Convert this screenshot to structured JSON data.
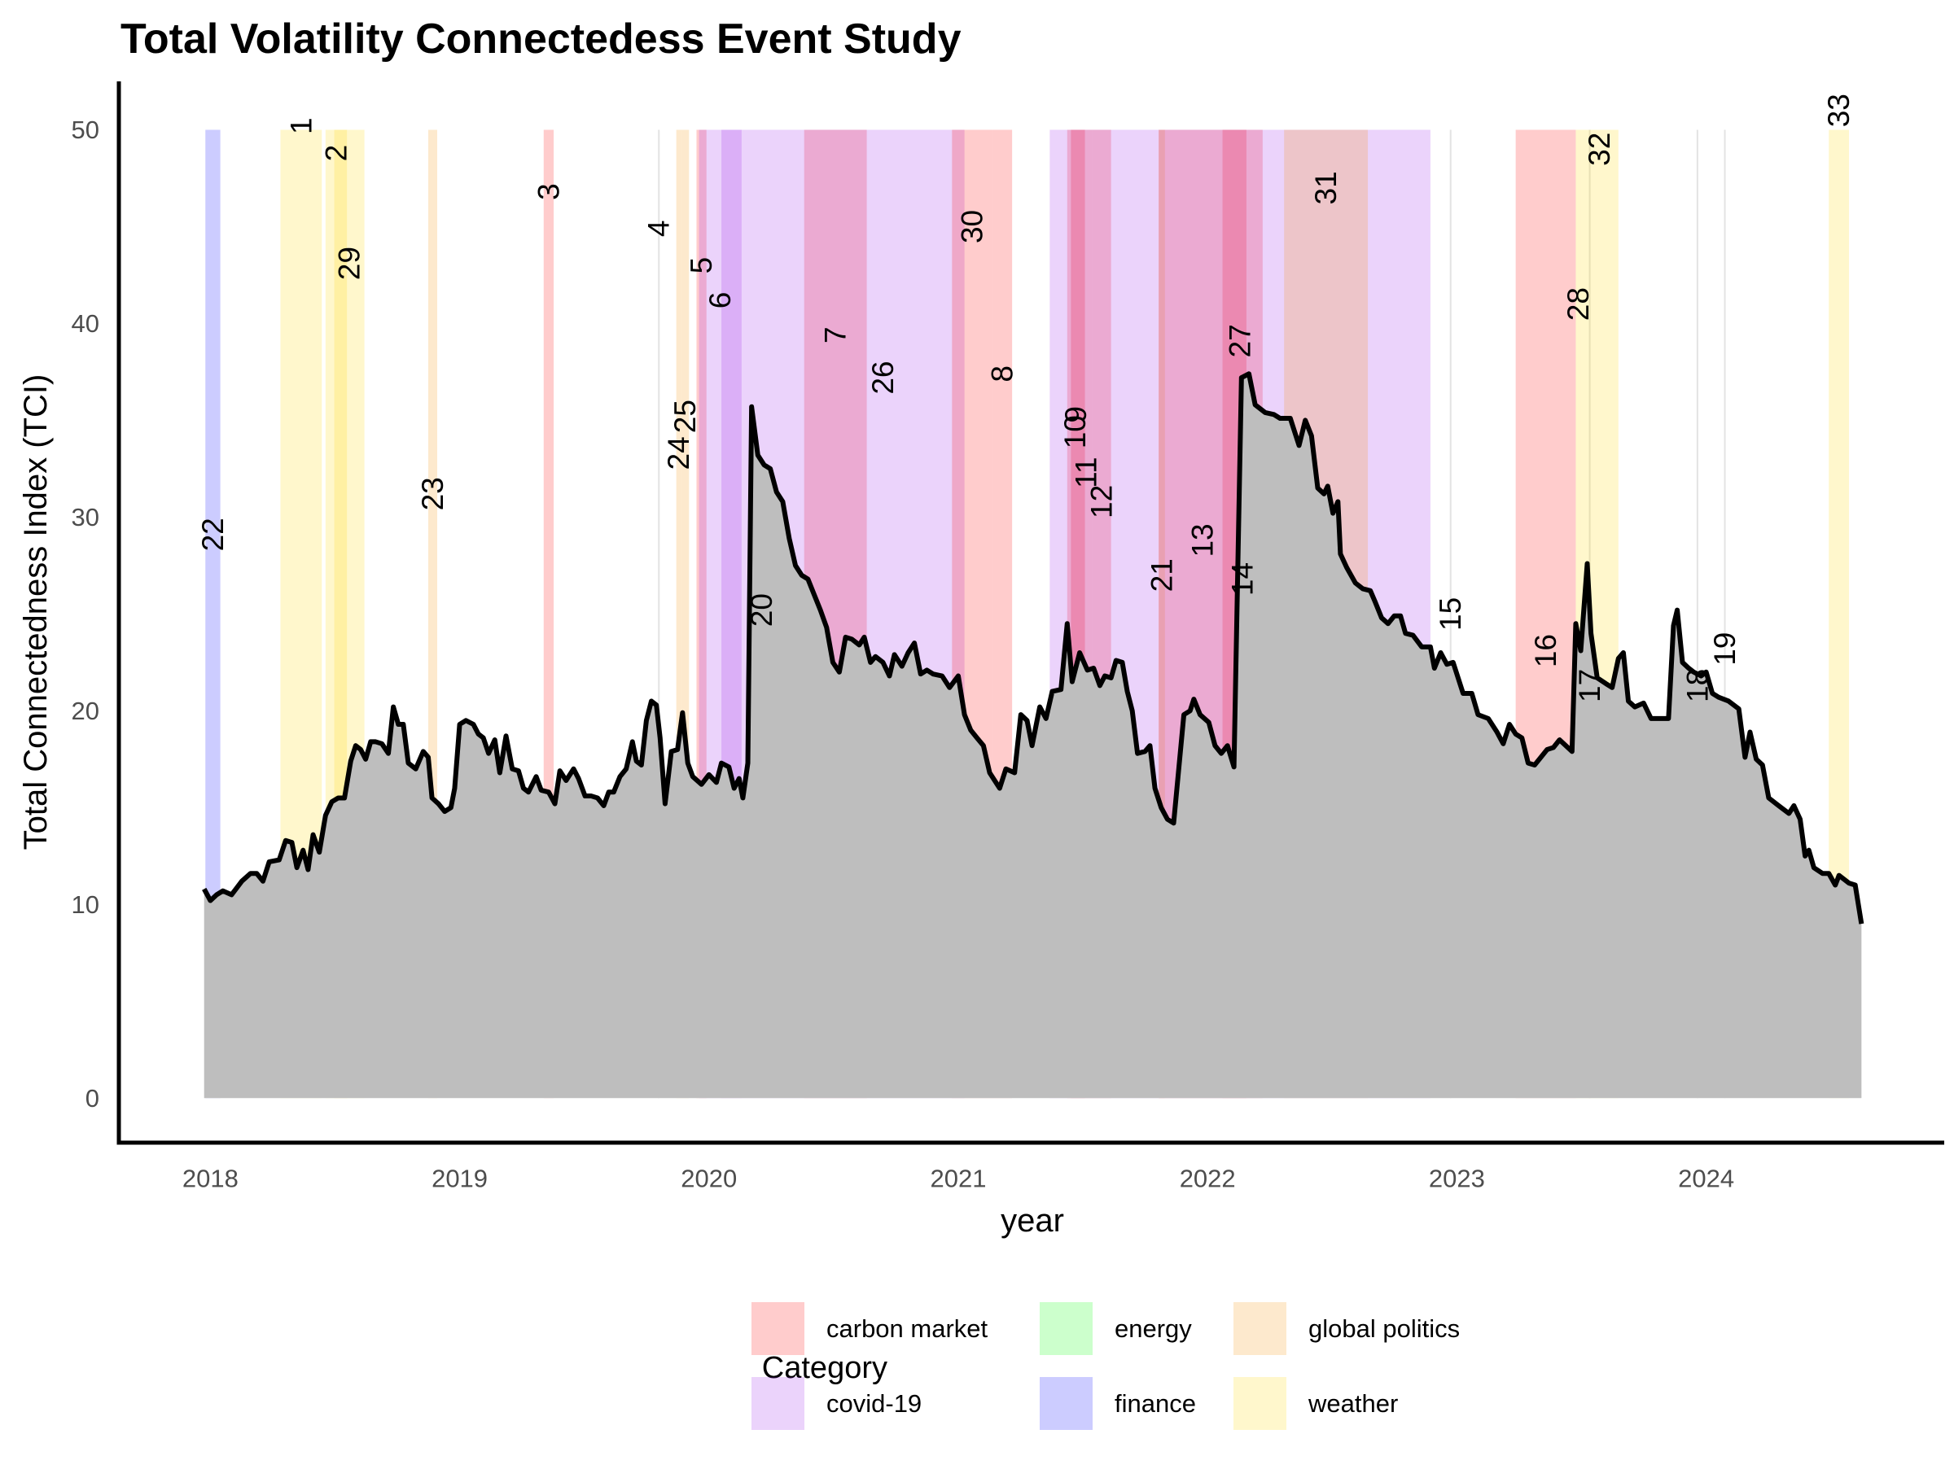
{
  "chart_data": {
    "type": "area",
    "title": "Total Volatility Connectedess Event Study",
    "x_label": "year",
    "y_label": "Total Connectedness Index (TCI)",
    "line_color": "#000000",
    "fill_color": "#bebebe",
    "x": [
      2017.975,
      2018.0,
      2018.025,
      2018.05,
      2018.085,
      2018.126,
      2018.161,
      2018.186,
      2018.211,
      2018.236,
      2018.276,
      2018.302,
      2018.327,
      2018.347,
      2018.372,
      2018.392,
      2018.412,
      2018.437,
      2018.462,
      2018.487,
      2018.513,
      2018.538,
      2018.563,
      2018.583,
      2018.603,
      2018.623,
      2018.643,
      2018.663,
      2018.688,
      2018.714,
      2018.734,
      2018.754,
      2018.774,
      2018.794,
      2018.824,
      2018.854,
      2018.874,
      2018.889,
      2018.915,
      2018.94,
      2018.965,
      2018.98,
      2019.0,
      2019.025,
      2019.055,
      2019.075,
      2019.095,
      2019.116,
      2019.141,
      2019.161,
      2019.186,
      2019.211,
      2019.236,
      2019.256,
      2019.276,
      2019.307,
      2019.327,
      2019.357,
      2019.382,
      2019.402,
      2019.427,
      2019.457,
      2019.477,
      2019.503,
      2019.528,
      2019.553,
      2019.578,
      2019.598,
      2019.618,
      2019.643,
      2019.668,
      2019.693,
      2019.709,
      2019.729,
      2019.749,
      2019.769,
      2019.789,
      2019.804,
      2019.824,
      2019.849,
      2019.874,
      2019.894,
      2019.915,
      2019.935,
      2019.97,
      2020.0,
      2020.03,
      2020.05,
      2020.08,
      2020.101,
      2020.121,
      2020.136,
      2020.156,
      2020.171,
      2020.196,
      2020.221,
      2020.246,
      2020.271,
      2020.296,
      2020.322,
      2020.347,
      2020.372,
      2020.397,
      2020.422,
      2020.447,
      2020.472,
      2020.497,
      2020.523,
      2020.548,
      2020.573,
      2020.603,
      2020.623,
      2020.648,
      2020.668,
      2020.698,
      2020.724,
      2020.744,
      2020.774,
      2020.799,
      2020.824,
      2020.849,
      2020.874,
      2020.899,
      2020.935,
      2020.965,
      2021.0,
      2021.025,
      2021.05,
      2021.075,
      2021.101,
      2021.126,
      2021.166,
      2021.191,
      2021.226,
      2021.251,
      2021.276,
      2021.296,
      2021.327,
      2021.352,
      2021.377,
      2021.412,
      2021.437,
      2021.457,
      2021.487,
      2021.518,
      2021.543,
      2021.568,
      2021.588,
      2021.613,
      2021.633,
      2021.658,
      2021.678,
      2021.698,
      2021.719,
      2021.749,
      2021.769,
      2021.789,
      2021.814,
      2021.839,
      2021.864,
      2021.905,
      2021.93,
      2021.945,
      2021.97,
      2022.005,
      2022.03,
      2022.055,
      2022.08,
      2022.106,
      2022.136,
      2022.166,
      2022.191,
      2022.231,
      2022.266,
      2022.291,
      2022.332,
      2022.367,
      2022.392,
      2022.417,
      2022.442,
      2022.467,
      2022.482,
      2022.503,
      2022.523,
      2022.533,
      2022.558,
      2022.593,
      2022.623,
      2022.653,
      2022.673,
      2022.698,
      2022.724,
      2022.749,
      2022.774,
      2022.794,
      2022.824,
      2022.859,
      2022.894,
      2022.91,
      2022.935,
      2022.96,
      2022.985,
      2023.025,
      2023.06,
      2023.085,
      2023.126,
      2023.161,
      2023.186,
      2023.211,
      2023.236,
      2023.261,
      2023.286,
      2023.312,
      2023.337,
      2023.362,
      2023.387,
      2023.412,
      2023.437,
      2023.462,
      2023.477,
      2023.497,
      2023.523,
      2023.538,
      2023.563,
      2023.598,
      2023.623,
      2023.648,
      2023.668,
      2023.688,
      2023.714,
      2023.749,
      2023.779,
      2023.814,
      2023.849,
      2023.869,
      2023.884,
      2023.905,
      2023.93,
      2023.95,
      2023.98,
      2024.0,
      2024.025,
      2024.05,
      2024.09,
      2024.131,
      2024.156,
      2024.176,
      2024.201,
      2024.226,
      2024.251,
      2024.291,
      2024.332,
      2024.352,
      2024.377,
      2024.397,
      2024.412,
      2024.432,
      2024.467,
      2024.492,
      2024.518,
      2024.533,
      2024.553,
      2024.573,
      2024.598,
      2024.623
    ],
    "values": [
      10.8,
      10.2,
      10.5,
      10.7,
      10.5,
      11.2,
      11.6,
      11.6,
      11.2,
      12.2,
      12.3,
      13.3,
      13.2,
      11.9,
      12.8,
      11.8,
      13.6,
      12.7,
      14.6,
      15.3,
      15.5,
      15.5,
      17.4,
      18.2,
      18.0,
      17.5,
      18.4,
      18.4,
      18.3,
      17.8,
      20.2,
      19.3,
      19.3,
      17.3,
      17.0,
      17.9,
      17.6,
      15.5,
      15.2,
      14.8,
      15.0,
      16.0,
      19.3,
      19.5,
      19.3,
      18.8,
      18.6,
      17.8,
      18.5,
      16.8,
      18.7,
      17.0,
      16.9,
      16.0,
      15.8,
      16.6,
      15.9,
      15.8,
      15.2,
      16.9,
      16.4,
      17.0,
      16.5,
      15.6,
      15.6,
      15.5,
      15.1,
      15.8,
      15.8,
      16.6,
      17.0,
      18.4,
      17.4,
      17.2,
      19.5,
      20.5,
      20.3,
      18.6,
      15.2,
      17.9,
      18.0,
      19.9,
      17.3,
      16.6,
      16.2,
      16.7,
      16.3,
      17.3,
      17.1,
      16.0,
      16.5,
      15.5,
      17.3,
      35.7,
      33.2,
      32.7,
      32.5,
      31.3,
      30.8,
      28.9,
      27.5,
      27.0,
      26.8,
      26.0,
      25.2,
      24.3,
      22.5,
      22.0,
      23.8,
      23.7,
      23.4,
      23.8,
      22.5,
      22.8,
      22.5,
      21.8,
      22.9,
      22.3,
      23.0,
      23.5,
      21.9,
      22.1,
      21.9,
      21.8,
      21.2,
      21.8,
      19.8,
      19.0,
      18.6,
      18.2,
      16.8,
      16.0,
      17.0,
      16.8,
      19.8,
      19.5,
      18.2,
      20.2,
      19.6,
      21.0,
      21.1,
      24.5,
      21.5,
      23.0,
      22.1,
      22.2,
      21.3,
      21.8,
      21.7,
      22.6,
      22.5,
      21.0,
      20.0,
      17.8,
      17.9,
      18.2,
      16.0,
      15.0,
      14.4,
      14.2,
      19.8,
      20.0,
      20.6,
      19.8,
      19.4,
      18.2,
      17.8,
      18.2,
      17.1,
      37.2,
      37.4,
      35.8,
      35.4,
      35.3,
      35.1,
      35.1,
      33.7,
      35.0,
      34.2,
      31.5,
      31.2,
      31.6,
      30.2,
      30.8,
      28.1,
      27.4,
      26.6,
      26.3,
      26.2,
      25.6,
      24.8,
      24.5,
      24.9,
      24.9,
      24.0,
      23.9,
      23.3,
      23.3,
      22.2,
      23.0,
      22.4,
      22.5,
      20.9,
      20.9,
      19.8,
      19.6,
      18.9,
      18.3,
      19.3,
      18.8,
      18.6,
      17.3,
      17.2,
      17.6,
      18.0,
      18.1,
      18.5,
      18.2,
      17.9,
      24.5,
      23.1,
      27.6,
      24.0,
      21.7,
      21.4,
      21.2,
      22.7,
      23.0,
      20.5,
      20.2,
      20.4,
      19.6,
      19.6,
      19.6,
      24.4,
      25.2,
      22.5,
      22.2,
      22.0,
      21.8,
      22.0,
      20.9,
      20.7,
      20.5,
      20.1,
      17.6,
      18.9,
      17.5,
      17.2,
      15.5,
      15.1,
      14.7,
      15.1,
      14.4,
      12.5,
      12.8,
      11.9,
      11.6,
      11.6,
      11.0,
      11.5,
      11.3,
      11.1,
      11.0,
      9.0
    ],
    "xlim": [
      2017.633,
      2024.955
    ],
    "xticks": [
      2018,
      2019,
      2020,
      2021,
      2022,
      2023,
      2024
    ],
    "ylim": [
      -2.3,
      52.5
    ],
    "yticks": [
      0,
      10,
      20,
      30,
      40,
      50
    ],
    "band_range": [
      0,
      50
    ],
    "band_alpha": 0.2,
    "legend": {
      "title": "Category",
      "position": "bottom",
      "categories": [
        {
          "name": "carbon market",
          "color": "#ff0000"
        },
        {
          "name": "covid-19",
          "color": "#9b23eb"
        },
        {
          "name": "energy",
          "color": "#00ff00"
        },
        {
          "name": "finance",
          "color": "#0000ff"
        },
        {
          "name": "global politics",
          "color": "#f59105"
        },
        {
          "name": "weather",
          "color": "#ffd700"
        }
      ]
    },
    "events": [
      {
        "id": 1,
        "category": "weather",
        "start": 2018.281,
        "end": 2018.447,
        "label_y": 50.2
      },
      {
        "id": 2,
        "category": "weather",
        "start": 2018.462,
        "end": 2018.548,
        "label_y": 48.8
      },
      {
        "id": 3,
        "category": "carbon market",
        "start": 2019.337,
        "end": 2019.377,
        "label_y": 46.8
      },
      {
        "id": 4,
        "category": "energy",
        "start": 2019.799,
        "end": 2019.799,
        "label_y": 44.9
      },
      {
        "id": 5,
        "category": "carbon market",
        "start": 2019.95,
        "end": 2019.99,
        "label_y": 43
      },
      {
        "id": 6,
        "category": "covid-19",
        "start": 2019.96,
        "end": 2020.131,
        "label_y": 41.2
      },
      {
        "id": 7,
        "category": "carbon market",
        "start": 2020.382,
        "end": 2020.633,
        "label_y": 39.4
      },
      {
        "id": 8,
        "category": "carbon market",
        "start": 2021.136,
        "end": 2021.216,
        "label_y": 37.4
      },
      {
        "id": 9,
        "category": "carbon market",
        "start": 2021.437,
        "end": 2021.508,
        "label_y": 35.3
      },
      {
        "id": 10,
        "category": "carbon market",
        "start": 2021.452,
        "end": 2021.487,
        "label_y": 34.4
      },
      {
        "id": 11,
        "category": "carbon market",
        "start": 2021.487,
        "end": 2021.538,
        "label_y": 32.3
      },
      {
        "id": 12,
        "category": "carbon market",
        "start": 2021.538,
        "end": 2021.613,
        "label_y": 30.8
      },
      {
        "id": 13,
        "category": "carbon market",
        "start": 2021.804,
        "end": 2022.156,
        "label_y": 28.8
      },
      {
        "id": 14,
        "category": "carbon market",
        "start": 2022.06,
        "end": 2022.221,
        "label_y": 26.8
      },
      {
        "id": 15,
        "category": "energy",
        "start": 2022.975,
        "end": 2022.975,
        "label_y": 25
      },
      {
        "id": 16,
        "category": "carbon market",
        "start": 2023.236,
        "end": 2023.477,
        "label_y": 23.1
      },
      {
        "id": 17,
        "category": "energy",
        "start": 2023.533,
        "end": 2023.533,
        "label_y": 21.3
      },
      {
        "id": 18,
        "category": "energy",
        "start": 2023.965,
        "end": 2023.965,
        "label_y": 21.3
      },
      {
        "id": 19,
        "category": "energy",
        "start": 2024.075,
        "end": 2024.075,
        "label_y": 23.2
      },
      {
        "id": 20,
        "category": "covid-19",
        "start": 2020.05,
        "end": 2020.372,
        "label_y": 25.2
      },
      {
        "id": 21,
        "category": "global politics",
        "start": 2021.804,
        "end": 2021.829,
        "label_y": 27
      },
      {
        "id": 22,
        "category": "finance",
        "start": 2017.98,
        "end": 2018.04,
        "label_y": 29.1
      },
      {
        "id": 23,
        "category": "global politics",
        "start": 2018.874,
        "end": 2018.91,
        "label_y": 31.2
      },
      {
        "id": 24,
        "category": "global politics",
        "start": 2019.869,
        "end": 2019.889,
        "label_y": 33.3
      },
      {
        "id": 25,
        "category": "global politics",
        "start": 2019.889,
        "end": 2019.92,
        "label_y": 35.2
      },
      {
        "id": 26,
        "category": "covid-19",
        "start": 2020.372,
        "end": 2021.025,
        "label_y": 37.2
      },
      {
        "id": 27,
        "category": "covid-19",
        "start": 2021.367,
        "end": 2022.894,
        "label_y": 39.1
      },
      {
        "id": 28,
        "category": "weather",
        "start": 2023.477,
        "end": 2023.497,
        "label_y": 41
      },
      {
        "id": 29,
        "category": "weather",
        "start": 2018.497,
        "end": 2018.618,
        "label_y": 43.1
      },
      {
        "id": 30,
        "category": "carbon market",
        "start": 2020.975,
        "end": 2021.136,
        "label_y": 45
      },
      {
        "id": 31,
        "category": "global politics",
        "start": 2022.307,
        "end": 2022.643,
        "label_y": 47
      },
      {
        "id": 32,
        "category": "weather",
        "start": 2023.497,
        "end": 2023.648,
        "label_y": 49
      },
      {
        "id": 33,
        "category": "weather",
        "start": 2024.492,
        "end": 2024.573,
        "label_y": 51
      }
    ]
  }
}
